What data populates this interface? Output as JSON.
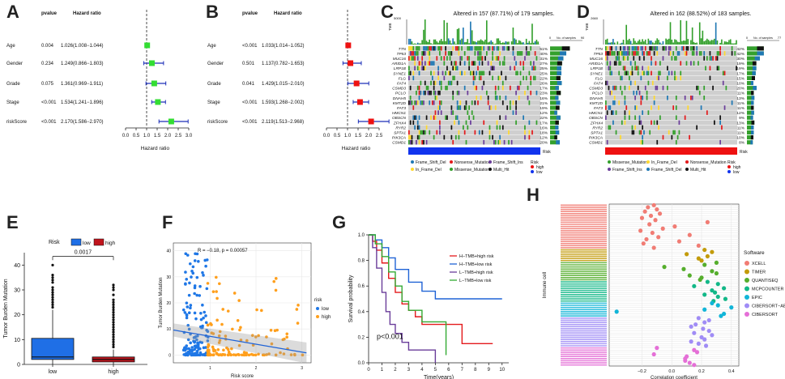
{
  "panel_letters": [
    "A",
    "B",
    "C",
    "D",
    "E",
    "F",
    "G",
    "H"
  ],
  "chart_data": [
    {
      "panel": "A",
      "type": "forest",
      "col_headers": {
        "pvalue": "pvalue",
        "hr": "Hazard ratio"
      },
      "xlabel": "Hazard ratio",
      "xticks": [
        "0.0",
        "0.5",
        "1.0",
        "1.5",
        "2.0",
        "2.5",
        "3.0"
      ],
      "xlim": [
        0,
        3.0
      ],
      "ref_line": 1.0,
      "marker_color": "#33dd33",
      "rows": [
        {
          "label": "Age",
          "pvalue": "0.004",
          "hr_text": "1.026(1.008−1.044)",
          "hr": 1.026,
          "lo": 1.008,
          "hi": 1.044
        },
        {
          "label": "Gender",
          "pvalue": "0.234",
          "hr_text": "1.249(0.866−1.803)",
          "hr": 1.249,
          "lo": 0.866,
          "hi": 1.803
        },
        {
          "label": "Grade",
          "pvalue": "0.075",
          "hr_text": "1.361(0.969−1.911)",
          "hr": 1.361,
          "lo": 0.969,
          "hi": 1.911
        },
        {
          "label": "Stage",
          "pvalue": "<0.001",
          "hr_text": "1.534(1.241−1.896)",
          "hr": 1.534,
          "lo": 1.241,
          "hi": 1.896
        },
        {
          "label": "riskScore",
          "pvalue": "<0.001",
          "hr_text": "2.170(1.586−2.970)",
          "hr": 2.17,
          "lo": 1.586,
          "hi": 2.97
        }
      ]
    },
    {
      "panel": "B",
      "type": "forest",
      "col_headers": {
        "pvalue": "pvalue",
        "hr": "Hazard ratio"
      },
      "xlabel": "Hazard ratio",
      "xticks": [
        "0.0",
        "0.5",
        "1.0",
        "1.5",
        "2.0",
        "2.5"
      ],
      "xlim": [
        0,
        2.5
      ],
      "ref_line": 1.0,
      "marker_color": "#ee1111",
      "rows": [
        {
          "label": "Age",
          "pvalue": "<0.001",
          "hr_text": "1.033(1.014−1.052)",
          "hr": 1.033,
          "lo": 1.014,
          "hi": 1.052
        },
        {
          "label": "Gender",
          "pvalue": "0.501",
          "hr_text": "1.137(0.782−1.653)",
          "hr": 1.137,
          "lo": 0.782,
          "hi": 1.653
        },
        {
          "label": "Grade",
          "pvalue": "0.041",
          "hr_text": "1.429(1.015−2.010)",
          "hr": 1.429,
          "lo": 1.015,
          "hi": 2.01
        },
        {
          "label": "Stage",
          "pvalue": "<0.001",
          "hr_text": "1.593(1.268−2.002)",
          "hr": 1.593,
          "lo": 1.268,
          "hi": 2.002
        },
        {
          "label": "riskScore",
          "pvalue": "<0.001",
          "hr_text": "2.119(1.513−2.968)",
          "hr": 2.119,
          "lo": 1.513,
          "hi": 2.968
        }
      ]
    },
    {
      "panel": "C",
      "type": "oncoplot",
      "title": "Altered in 157 (87.71%) of 179 samples.",
      "tmb_label": "TMB",
      "tmb_max": "5000",
      "side_axis": [
        "0",
        "90"
      ],
      "side_axis_label": "No. of samples",
      "risk_label": "Risk",
      "risk_color": "#1133ee",
      "genes": [
        "TTN",
        "TP53",
        "MUC16",
        "ARID1A",
        "LRP1B",
        "SYNE1",
        "FLG",
        "FAT4",
        "CSMD3",
        "PCLO",
        "DNAH5",
        "KMT2D",
        "FAT3",
        "HMCN1",
        "OBSCN",
        "ZFHX4",
        "RYR2",
        "SPTA1",
        "PIK3CA",
        "CSMD1"
      ],
      "percents": [
        "51%",
        "40%",
        "31%",
        "27%",
        "25%",
        "25%",
        "22%",
        "26%",
        "17%",
        "23%",
        "16%",
        "21%",
        "19%",
        "12%",
        "22%",
        "17%",
        "16%",
        "18%",
        "12%",
        "20%"
      ],
      "legend": [
        {
          "label": "Frame_Shift_Del",
          "color": "#1f78b4"
        },
        {
          "label": "Nonsense_Mutation",
          "color": "#e31a1c"
        },
        {
          "label": "Frame_Shift_Ins",
          "color": "#6a3d9a"
        },
        {
          "label": "In_Frame_Del",
          "color": "#ffd92f"
        },
        {
          "label": "Missense_Mutation",
          "color": "#33a02c"
        },
        {
          "label": "Multi_Hit",
          "color": "#111111"
        }
      ],
      "risk_legend_title": "Risk",
      "risk_legend": [
        {
          "label": "high",
          "color": "#ee1111"
        },
        {
          "label": "low",
          "color": "#1133ee"
        }
      ]
    },
    {
      "panel": "D",
      "type": "oncoplot",
      "title": "Altered in 162 (88.52%) of 183 samples.",
      "tmb_label": "TMB",
      "tmb_max": "2660",
      "side_axis": [
        "0",
        "77"
      ],
      "side_axis_label": "No. of samples",
      "risk_label": "Risk",
      "risk_color": "#ee1111",
      "genes": [
        "TTN",
        "TP53",
        "MUC16",
        "ARID1A",
        "LRP1B",
        "SYNE1",
        "FLG",
        "FAT4",
        "CSMD3",
        "PCLO",
        "DNAH5",
        "KMT2D",
        "FAT3",
        "HMCN1",
        "OBSCN",
        "ZFHX4",
        "RYR2",
        "SPTA1",
        "PIK3CA",
        "CSMD1"
      ],
      "percents": [
        "42%",
        "42%",
        "30%",
        "19%",
        "19%",
        "17%",
        "15%",
        "10%",
        "20%",
        "11%",
        "13%",
        "11%",
        "11%",
        "12%",
        "9%",
        "13%",
        "11%",
        "11%",
        "10%",
        "8%"
      ],
      "legend": [
        {
          "label": "Missense_Mutation",
          "color": "#33a02c"
        },
        {
          "label": "In_Frame_Del",
          "color": "#ffd92f"
        },
        {
          "label": "Nonsense_Mutation",
          "color": "#e31a1c"
        },
        {
          "label": "Frame_Shift_Ins",
          "color": "#6a3d9a"
        },
        {
          "label": "Frame_Shift_Del",
          "color": "#1f78b4"
        },
        {
          "label": "Multi_Hit",
          "color": "#111111"
        }
      ],
      "risk_legend_title": "Risk",
      "risk_legend": [
        {
          "label": "high",
          "color": "#ee1111"
        },
        {
          "label": "low",
          "color": "#1133ee"
        }
      ]
    },
    {
      "panel": "E",
      "type": "boxplot",
      "legend_title": "Risk",
      "categories": [
        "low",
        "high"
      ],
      "colors": [
        "#1f6fe6",
        "#c0141c"
      ],
      "ylabel": "Tumor Burden Mutation",
      "yticks": [
        0,
        10,
        20,
        30,
        40
      ],
      "ylim": [
        0,
        45
      ],
      "pvalue": "0.0017",
      "boxes": [
        {
          "q1": 2,
          "median": 3,
          "q3": 10.5,
          "whisker_lo": 0,
          "whisker_hi": 22,
          "outliers": [
            23,
            24,
            25,
            26,
            27,
            28,
            29,
            30,
            31,
            33,
            34,
            35,
            36,
            40
          ]
        },
        {
          "q1": 1,
          "median": 2,
          "q3": 3,
          "whisker_lo": 0,
          "whisker_hi": 6,
          "outliers": [
            7,
            8,
            9,
            10,
            11,
            12,
            13,
            14,
            15,
            16,
            17,
            18,
            19,
            20,
            21,
            22,
            23,
            24,
            25,
            26,
            28,
            30,
            31,
            32
          ]
        }
      ]
    },
    {
      "panel": "F",
      "type": "scatter",
      "annotation": "R = −0.18, p = 0.00057",
      "xlabel": "Risk score",
      "ylabel": "Tumor Burden Mutation",
      "xticks": [
        1,
        2,
        3
      ],
      "yticks": [
        0,
        10,
        20,
        30,
        40
      ],
      "xlim": [
        0.2,
        3.2
      ],
      "ylim": [
        -3,
        43
      ],
      "legend_title": "risk",
      "series": [
        {
          "name": "low",
          "color": "#1f77e6"
        },
        {
          "name": "high",
          "color": "#ff9f1c"
        }
      ],
      "fit": {
        "x": [
          0.2,
          3.1
        ],
        "y": [
          9.6,
          0.8
        ]
      }
    },
    {
      "panel": "G",
      "type": "line",
      "xlabel": "Time(years)",
      "ylabel": "Survival probability",
      "xticks": [
        0,
        1,
        2,
        3,
        4,
        5,
        6,
        7,
        8,
        9,
        10
      ],
      "yticks": [
        "0.0",
        "0.2",
        "0.4",
        "0.6",
        "0.8",
        "1.0"
      ],
      "xlim": [
        0,
        10.5
      ],
      "ylim": [
        0,
        1
      ],
      "pvalue": "p<0.001",
      "series": [
        {
          "name": "H−TMB+high risk",
          "color": "#e41a1c",
          "x": [
            0,
            0.3,
            0.6,
            1,
            1.5,
            2,
            2.5,
            3,
            3.5,
            4,
            5,
            6,
            7,
            8,
            9.3
          ],
          "y": [
            1,
            0.95,
            0.88,
            0.78,
            0.66,
            0.55,
            0.46,
            0.41,
            0.36,
            0.3,
            0.3,
            0.3,
            0.15,
            0.15,
            0.15
          ]
        },
        {
          "name": "H−TMB+low risk",
          "color": "#1f63d6",
          "x": [
            0,
            0.5,
            1,
            1.5,
            2,
            3,
            4,
            5,
            6,
            7,
            8,
            9,
            10
          ],
          "y": [
            1,
            0.96,
            0.9,
            0.82,
            0.73,
            0.63,
            0.56,
            0.5,
            0.5,
            0.5,
            0.5,
            0.5,
            0.5
          ]
        },
        {
          "name": "L−TMB+high risk",
          "color": "#6a3d9a",
          "x": [
            0,
            0.3,
            0.6,
            1,
            1.3,
            1.6,
            2,
            2.5,
            3,
            4,
            5
          ],
          "y": [
            1,
            0.9,
            0.74,
            0.55,
            0.4,
            0.3,
            0.23,
            0.16,
            0.1,
            0.1,
            0
          ]
        },
        {
          "name": "L−TMB+low risk",
          "color": "#33aa33",
          "x": [
            0,
            0.5,
            1,
            1.5,
            2,
            2.5,
            3,
            4,
            5,
            5.8
          ],
          "y": [
            1,
            0.93,
            0.83,
            0.71,
            0.6,
            0.48,
            0.41,
            0.32,
            0.32,
            0.06
          ]
        }
      ]
    },
    {
      "panel": "H",
      "type": "scatter",
      "xlabel": "Correlation coefficient",
      "ylabel": "Immune cell",
      "xticks": [
        "−0.2",
        "0.0",
        "0.2",
        "0.4"
      ],
      "xlim": [
        -0.42,
        0.45
      ],
      "legend_title": "Software",
      "software": [
        {
          "name": "XCELL",
          "color": "#f17c74"
        },
        {
          "name": "TIMER",
          "color": "#c39b0a"
        },
        {
          "name": "QUANTISEQ",
          "color": "#55ae2c"
        },
        {
          "name": "MCPCOUNTER",
          "color": "#12b888"
        },
        {
          "name": "EPIC",
          "color": "#11b5d8"
        },
        {
          "name": "CIBERSORT−ABS",
          "color": "#a08cf6"
        },
        {
          "name": "CIBERSORT",
          "color": "#e56fd7"
        }
      ],
      "points": [
        {
          "s": 0,
          "r": -0.12
        },
        {
          "s": 0,
          "r": -0.16
        },
        {
          "s": 0,
          "r": -0.1
        },
        {
          "s": 0,
          "r": -0.18
        },
        {
          "s": 0,
          "r": -0.08
        },
        {
          "s": 0,
          "r": -0.14
        },
        {
          "s": 0,
          "r": -0.2
        },
        {
          "s": 0,
          "r": -0.11
        },
        {
          "s": 0,
          "r": 0.24
        },
        {
          "s": 0,
          "r": -0.15
        },
        {
          "s": 0,
          "r": 0.02
        },
        {
          "s": 0,
          "r": -0.06
        },
        {
          "s": 0,
          "r": -0.21
        },
        {
          "s": 0,
          "r": -0.13
        },
        {
          "s": 0,
          "r": 0.12
        },
        {
          "s": 0,
          "r": -0.09
        },
        {
          "s": 0,
          "r": -0.17
        },
        {
          "s": 0,
          "r": 0.05
        },
        {
          "s": 0,
          "r": -0.19
        },
        {
          "s": 0,
          "r": 0.18
        },
        {
          "s": 0,
          "r": -0.12
        },
        {
          "s": 1,
          "r": 0.22
        },
        {
          "s": 1,
          "r": 0.27
        },
        {
          "s": 1,
          "r": 0.1
        },
        {
          "s": 1,
          "r": 0.24
        },
        {
          "s": 1,
          "r": 0.18
        },
        {
          "s": 1,
          "r": 0.2
        },
        {
          "s": 2,
          "r": 0.3
        },
        {
          "s": 2,
          "r": 0.22
        },
        {
          "s": 2,
          "r": -0.05
        },
        {
          "s": 2,
          "r": 0.08
        },
        {
          "s": 2,
          "r": 0.27
        },
        {
          "s": 2,
          "r": 0.3
        },
        {
          "s": 2,
          "r": 0.12
        },
        {
          "s": 2,
          "r": 0.2
        },
        {
          "s": 2,
          "r": 0.19
        },
        {
          "s": 3,
          "r": 0.24
        },
        {
          "s": 3,
          "r": 0.31
        },
        {
          "s": 3,
          "r": 0.15
        },
        {
          "s": 3,
          "r": 0.35
        },
        {
          "s": 3,
          "r": 0.27
        },
        {
          "s": 3,
          "r": 0.29
        },
        {
          "s": 3,
          "r": 0.22
        },
        {
          "s": 3,
          "r": 0.31
        },
        {
          "s": 3,
          "r": 0.36
        },
        {
          "s": 3,
          "r": 0.28
        },
        {
          "s": 4,
          "r": 0.27
        },
        {
          "s": 4,
          "r": 0.31
        },
        {
          "s": 4,
          "r": 0.4
        },
        {
          "s": 4,
          "r": 0.22
        },
        {
          "s": 4,
          "r": -0.37
        },
        {
          "s": 4,
          "r": 0.35
        },
        {
          "s": 4,
          "r": 0.33
        },
        {
          "s": 5,
          "r": 0.18
        },
        {
          "s": 5,
          "r": 0.25
        },
        {
          "s": 5,
          "r": 0.22
        },
        {
          "s": 5,
          "r": 0.16
        },
        {
          "s": 5,
          "r": 0.13
        },
        {
          "s": 5,
          "r": 0.21
        },
        {
          "s": 5,
          "r": 0.25
        },
        {
          "s": 5,
          "r": 0.15
        },
        {
          "s": 5,
          "r": 0.27
        },
        {
          "s": 5,
          "r": 0.2
        },
        {
          "s": 5,
          "r": 0.22
        },
        {
          "s": 5,
          "r": 0.13
        },
        {
          "s": 5,
          "r": 0.18
        },
        {
          "s": 5,
          "r": 0.23
        },
        {
          "s": 6,
          "r": -0.1
        },
        {
          "s": 6,
          "r": 0.15
        },
        {
          "s": 6,
          "r": 0.17
        },
        {
          "s": 6,
          "r": -0.12
        },
        {
          "s": 6,
          "r": 0.1
        },
        {
          "s": 6,
          "r": 0.09
        },
        {
          "s": 6,
          "r": 0.09
        },
        {
          "s": 6,
          "r": 0.12
        },
        {
          "s": 6,
          "r": 0.15
        }
      ]
    }
  ]
}
